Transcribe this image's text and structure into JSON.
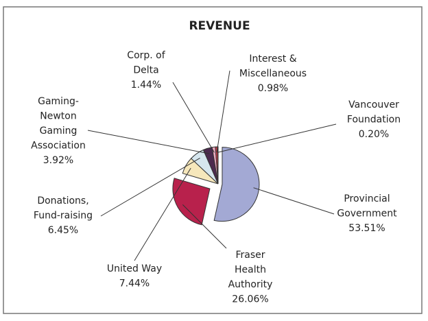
{
  "chart_data": {
    "type": "pie",
    "title": "REVENUE",
    "categories": [
      [
        "Provincial",
        "Government"
      ],
      [
        "Fraser",
        "Health",
        "Authority"
      ],
      [
        "United Way"
      ],
      [
        "Donations,",
        "Fund-raising"
      ],
      [
        "Gaming-",
        "Newton",
        "Gaming",
        "Association"
      ],
      [
        "Corp. of",
        "Delta"
      ],
      [
        "Interest &",
        "Miscellaneous"
      ],
      [
        "Vancouver",
        "Foundation"
      ]
    ],
    "values": [
      53.51,
      26.06,
      7.44,
      6.45,
      3.92,
      1.44,
      0.98,
      0.2
    ],
    "value_labels": [
      "53.51%",
      "26.06%",
      "7.44%",
      "6.45%",
      "3.92%",
      "1.44%",
      "0.98%",
      "0.20%"
    ],
    "colors": [
      "#a3a9d4",
      "#b8214c",
      "#f6e7bb",
      "#d6e6ee",
      "#4c2a4e",
      "#e9a9c0",
      "#c83c4a",
      "#f0d6e0"
    ]
  }
}
